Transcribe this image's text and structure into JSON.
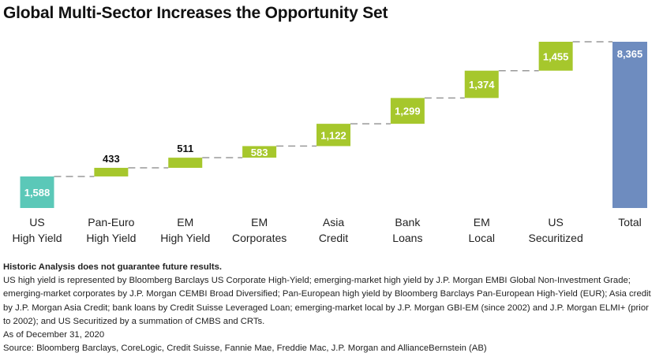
{
  "title": "Global Multi-Sector Increases the Opportunity Set",
  "colors": {
    "us_high_yield": "#5bc8b8",
    "increment": "#a6c72c",
    "total": "#6e8cbf",
    "connector": "#999999"
  },
  "chart_data": {
    "type": "bar",
    "subtype": "waterfall",
    "categories": [
      [
        "US",
        "High Yield"
      ],
      [
        "Pan-Euro",
        "High Yield"
      ],
      [
        "EM",
        "High Yield"
      ],
      [
        "EM",
        "Corporates"
      ],
      [
        "Asia",
        "Credit"
      ],
      [
        "Bank",
        "Loans"
      ],
      [
        "EM",
        "Local"
      ],
      [
        "US",
        "Securitized"
      ],
      [
        "Total"
      ]
    ],
    "values": [
      1588,
      433,
      511,
      583,
      1122,
      1299,
      1374,
      1455,
      8365
    ],
    "data_labels": [
      "1,588",
      "433",
      "511",
      "583",
      "1,122",
      "1,299",
      "1,374",
      "1,455",
      "8,365"
    ],
    "ylim": [
      0,
      8365
    ],
    "grid": false,
    "legend": "none"
  },
  "notes": {
    "disclaimer": "Historic Analysis does not guarantee future results.",
    "body": "US high yield is represented by Bloomberg Barclays US Corporate High-Yield; emerging-market high yield by J.P. Morgan EMBI Global Non-Investment Grade; emerging-market corporates by J.P. Morgan CEMBI Broad Diversified; Pan-European high yield by Bloomberg Barclays Pan-European High-Yield (EUR); Asia credit by J.P. Morgan Asia Credit; bank loans by Credit Suisse Leveraged Loan; emerging-market local by J.P. Morgan GBI-EM (since 2002) and J.P. Morgan ELMI+ (prior to 2002); and US Securitized by a summation of CMBS and CRTs.",
    "as_of": "As of December 31, 2020",
    "source": "Source: Bloomberg Barclays, CoreLogic, Credit Suisse, Fannie Mae, Freddie Mac, J.P. Morgan and AllianceBernstein (AB)"
  }
}
